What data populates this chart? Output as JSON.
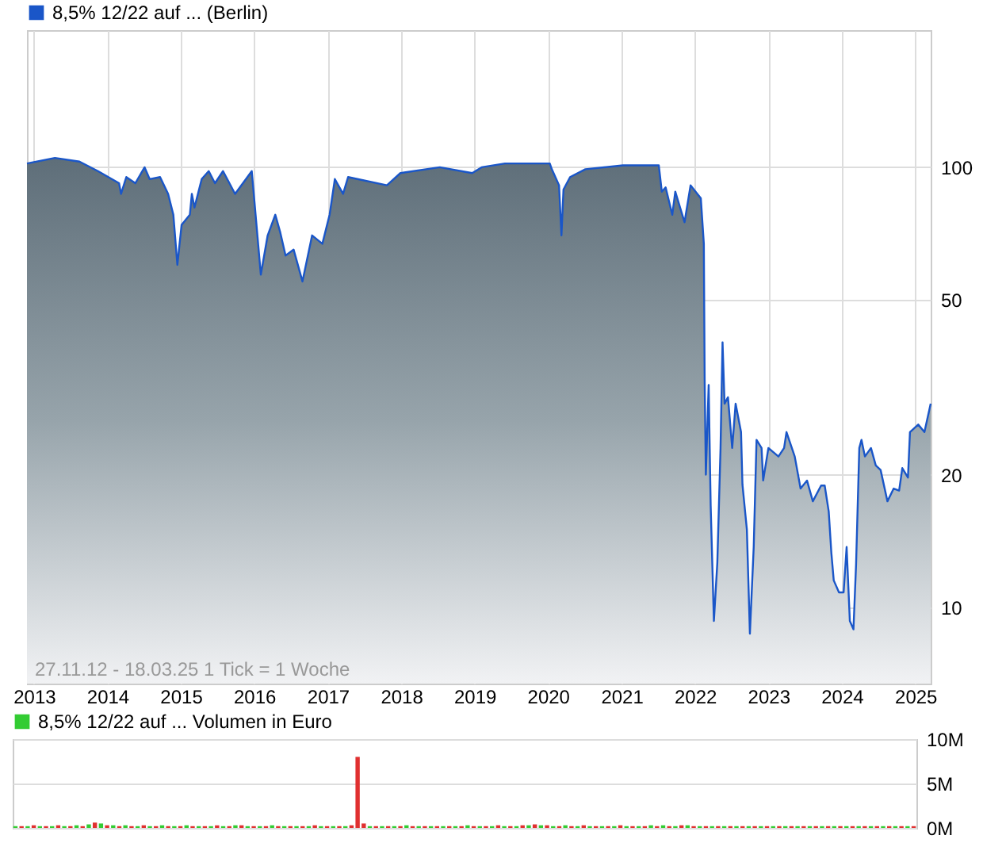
{
  "chart_data": [
    {
      "type": "area",
      "log": true,
      "grid": true,
      "legend": "top left",
      "tick_labels": "xy",
      "xlim": [
        "2012-11-27",
        "2025-03-18"
      ],
      "xticks": [
        "2013",
        "2014",
        "2015",
        "2016",
        "2017",
        "2018",
        "2019",
        "2020",
        "2021",
        "2022",
        "2023",
        "2024",
        "2025"
      ],
      "ylim": [
        6.7,
        205
      ],
      "yticks": [
        10,
        20,
        50,
        100
      ],
      "annotations": [
        "27.11.12 - 18.03.25   1 Tick = 1 Woche"
      ],
      "series": [
        {
          "name": "8,5% 12/22 auf ... (Berlin)",
          "color": "#1a56c8",
          "x": [
            "2012-11-27",
            "2013-04-15",
            "2013-08-15",
            "2013-11-15",
            "2014-02-28",
            "2014-03-10",
            "2014-04-05",
            "2014-05-20",
            "2014-07-05",
            "2014-07-30",
            "2014-09-20",
            "2014-10-30",
            "2014-11-25",
            "2014-12-15",
            "2015-01-05",
            "2015-02-15",
            "2015-02-25",
            "2015-03-10",
            "2015-04-15",
            "2015-05-20",
            "2015-06-20",
            "2015-07-30",
            "2015-09-28",
            "2015-12-20",
            "2016-01-08",
            "2016-02-03",
            "2016-03-08",
            "2016-04-15",
            "2016-05-10",
            "2016-06-05",
            "2016-07-15",
            "2016-08-28",
            "2016-10-15",
            "2016-12-05",
            "2017-01-10",
            "2017-02-05",
            "2017-03-18",
            "2017-04-12",
            "2017-10-22",
            "2017-12-28",
            "2018-07-12",
            "2018-12-20",
            "2019-02-05",
            "2019-06-01",
            "2020-01-10",
            "2020-01-20",
            "2020-02-25",
            "2020-03-08",
            "2020-03-18",
            "2020-04-20",
            "2020-07-05",
            "2021-01-08",
            "2021-07-05",
            "2021-07-20",
            "2021-08-08",
            "2021-09-10",
            "2021-09-25",
            "2021-11-10",
            "2021-12-10",
            "2022-01-30",
            "2022-02-14",
            "2022-02-18",
            "2022-02-24",
            "2022-03-10",
            "2022-03-20",
            "2022-04-05",
            "2022-04-22",
            "2022-05-08",
            "2022-05-18",
            "2022-05-28",
            "2022-06-14",
            "2022-07-05",
            "2022-07-22",
            "2022-08-18",
            "2022-08-25",
            "2022-09-16",
            "2022-10-01",
            "2022-10-20",
            "2022-11-03",
            "2022-11-28",
            "2022-12-06",
            "2023-01-01",
            "2023-02-20",
            "2023-03-20",
            "2023-04-01",
            "2023-05-12",
            "2023-06-10",
            "2023-07-12",
            "2023-08-10",
            "2023-09-20",
            "2023-10-08",
            "2023-10-28",
            "2023-11-10",
            "2023-11-22",
            "2023-12-18",
            "2024-01-10",
            "2024-01-25",
            "2024-02-10",
            "2024-02-28",
            "2024-03-12",
            "2024-03-28",
            "2024-04-08",
            "2024-04-25",
            "2024-05-25",
            "2024-06-18",
            "2024-07-12",
            "2024-08-15",
            "2024-09-15",
            "2024-10-12",
            "2024-10-28",
            "2024-11-25",
            "2024-12-05",
            "2025-01-15",
            "2025-02-15",
            "2025-03-18"
          ],
          "values": [
            102,
            105,
            103,
            98,
            92,
            87,
            95,
            92,
            100,
            94,
            95,
            87,
            78,
            60,
            74,
            78,
            87,
            81,
            94,
            98,
            92,
            98,
            87,
            98,
            78,
            57,
            70,
            78,
            71,
            63,
            65,
            55,
            70,
            67,
            78,
            94,
            87,
            95,
            91,
            97,
            100,
            97,
            100,
            102,
            102,
            99,
            91,
            70,
            89,
            95,
            99,
            101,
            101,
            88,
            90,
            78,
            88,
            75,
            91,
            85,
            67,
            33,
            20,
            32,
            17,
            9.3,
            12.6,
            23,
            40,
            29,
            30,
            23,
            29,
            25,
            19,
            15,
            8.7,
            13.7,
            24,
            23,
            19.4,
            23,
            22,
            23,
            25,
            22,
            18.6,
            19.4,
            17.4,
            18.9,
            18.9,
            16.5,
            13.3,
            11.5,
            10.8,
            10.8,
            13.7,
            9.3,
            8.9,
            12.5,
            23,
            24,
            22,
            23,
            21,
            20.5,
            17.4,
            18.6,
            18.4,
            20.7,
            19.7,
            25,
            26,
            25,
            29
          ]
        }
      ]
    },
    {
      "type": "bar",
      "grid": "y",
      "legend": "top left",
      "tick_labels": "y",
      "categories": [
        null,
        null,
        null,
        null,
        null,
        null,
        null,
        null,
        null,
        null,
        null,
        null,
        null,
        null,
        null,
        null,
        null,
        null,
        null,
        null,
        null,
        null,
        null,
        null,
        null,
        null,
        null,
        null,
        null,
        null,
        null,
        null,
        null,
        null,
        null,
        null,
        null,
        null,
        null,
        null,
        null,
        null,
        null,
        null,
        null,
        null,
        null,
        null,
        null,
        null,
        null,
        null,
        null,
        null,
        null,
        null,
        null,
        null,
        null,
        null,
        null,
        null,
        null,
        null,
        null,
        null,
        null,
        null,
        null,
        null,
        null,
        null,
        null,
        null,
        null,
        null,
        null,
        null,
        null,
        null,
        null,
        null,
        null,
        null,
        null,
        null,
        null,
        null,
        null,
        null,
        null,
        null,
        null,
        null,
        null,
        null,
        null,
        null,
        null,
        null,
        null,
        null,
        null,
        null,
        null,
        null,
        null,
        null,
        null,
        null,
        null,
        null,
        null,
        null,
        null,
        null,
        null,
        null,
        null,
        null,
        null,
        null,
        null,
        null,
        null,
        null,
        null,
        null,
        null,
        null,
        null,
        null,
        null,
        null,
        null,
        null,
        null,
        null,
        null,
        null,
        null,
        null,
        null,
        null,
        null,
        null,
        null,
        null
      ],
      "ylim": [
        0,
        10
      ],
      "yticks": [
        {
          "value": 0,
          "label": "0M"
        },
        {
          "value": 5,
          "label": "5M"
        },
        {
          "value": 10,
          "label": "10M"
        }
      ],
      "series": [
        {
          "name": "8,5% 12/22 auf ... Volumen in Euro",
          "color": "#33cc33",
          "values": [
            0.2,
            0.2,
            0.2,
            0.3,
            0.2,
            0.2,
            0.2,
            0.3,
            0.2,
            0.2,
            0.3,
            0.2,
            0.4,
            0.6,
            0.5,
            0.3,
            0.3,
            0.2,
            0.3,
            0.2,
            0.2,
            0.3,
            0.2,
            0.2,
            0.3,
            0.2,
            0.2,
            0.2,
            0.3,
            0.2,
            0.2,
            0.2,
            0.2,
            0.3,
            0.2,
            0.2,
            0.3,
            0.3,
            0.2,
            0.2,
            0.2,
            0.2,
            0.3,
            0.2,
            0.2,
            0.2,
            0.2,
            0.2,
            0.2,
            0.3,
            0.2,
            0.2,
            0.2,
            0.2,
            0.2,
            0.3,
            8,
            0.5,
            0.2,
            0.2,
            0.2,
            0.2,
            0.2,
            0.2,
            0.3,
            0.2,
            0.2,
            0.2,
            0.2,
            0.2,
            0.2,
            0.2,
            0.2,
            0.2,
            0.3,
            0.2,
            0.2,
            0.2,
            0.2,
            0.3,
            0.2,
            0.2,
            0.2,
            0.3,
            0.3,
            0.4,
            0.3,
            0.3,
            0.2,
            0.2,
            0.3,
            0.2,
            0.2,
            0.3,
            0.2,
            0.2,
            0.2,
            0.2,
            0.2,
            0.3,
            0.2,
            0.2,
            0.2,
            0.2,
            0.3,
            0.2,
            0.3,
            0.2,
            0.2,
            0.3,
            0.3,
            0.2,
            0.2,
            0.2,
            0.2,
            0.2,
            0.2,
            0.2,
            0.2,
            0.2,
            0.2,
            0.2,
            0.2,
            0.2,
            0.2,
            0.2,
            0.2,
            0.2,
            0.2,
            0.2,
            0.2,
            0.2,
            0.2,
            0.2,
            0.2,
            0.2,
            0.2,
            0.2,
            0.2,
            0.2,
            0.2,
            0.2,
            0.2,
            0.2,
            0.2,
            0.2,
            0.2,
            0.2
          ],
          "colors": [
            "#33cc33",
            "#e03030",
            "#33cc33",
            "#e03030",
            "#33cc33",
            "#e03030",
            "#33cc33",
            "#e03030",
            "#33cc33",
            "#e03030",
            "#33cc33",
            "#e03030",
            "#33cc33",
            "#e03030",
            "#33cc33",
            "#e03030",
            "#33cc33",
            "#e03030",
            "#33cc33",
            "#e03030",
            "#33cc33",
            "#e03030",
            "#33cc33",
            "#e03030",
            "#33cc33",
            "#e03030",
            "#33cc33",
            "#e03030",
            "#33cc33",
            "#e03030",
            "#33cc33",
            "#e03030",
            "#33cc33",
            "#e03030",
            "#33cc33",
            "#e03030",
            "#33cc33",
            "#e03030",
            "#33cc33",
            "#e03030",
            "#33cc33",
            "#e03030",
            "#33cc33",
            "#e03030",
            "#33cc33",
            "#e03030",
            "#33cc33",
            "#e03030",
            "#33cc33",
            "#e03030",
            "#33cc33",
            "#e03030",
            "#33cc33",
            "#e03030",
            "#33cc33",
            "#e03030",
            "#e03030",
            "#e03030",
            "#33cc33",
            "#e03030",
            "#33cc33",
            "#e03030",
            "#33cc33",
            "#e03030",
            "#33cc33",
            "#e03030",
            "#33cc33",
            "#e03030",
            "#33cc33",
            "#e03030",
            "#33cc33",
            "#e03030",
            "#33cc33",
            "#e03030",
            "#33cc33",
            "#e03030",
            "#33cc33",
            "#e03030",
            "#33cc33",
            "#e03030",
            "#33cc33",
            "#e03030",
            "#33cc33",
            "#e03030",
            "#33cc33",
            "#e03030",
            "#33cc33",
            "#e03030",
            "#33cc33",
            "#e03030",
            "#33cc33",
            "#e03030",
            "#33cc33",
            "#e03030",
            "#33cc33",
            "#e03030",
            "#33cc33",
            "#e03030",
            "#33cc33",
            "#e03030",
            "#33cc33",
            "#e03030",
            "#33cc33",
            "#e03030",
            "#33cc33",
            "#e03030",
            "#33cc33",
            "#e03030",
            "#33cc33",
            "#e03030",
            "#33cc33",
            "#e03030",
            "#33cc33",
            "#e03030",
            "#33cc33",
            "#e03030",
            "#33cc33",
            "#e03030",
            "#33cc33",
            "#e03030",
            "#33cc33",
            "#e03030",
            "#33cc33",
            "#e03030",
            "#33cc33",
            "#e03030",
            "#33cc33",
            "#e03030",
            "#33cc33",
            "#e03030",
            "#33cc33",
            "#e03030",
            "#33cc33",
            "#e03030",
            "#33cc33",
            "#e03030",
            "#33cc33",
            "#e03030",
            "#33cc33",
            "#e03030",
            "#33cc33",
            "#e03030",
            "#33cc33",
            "#e03030",
            "#33cc33",
            "#e03030",
            "#33cc33",
            "#e03030"
          ]
        }
      ]
    }
  ]
}
